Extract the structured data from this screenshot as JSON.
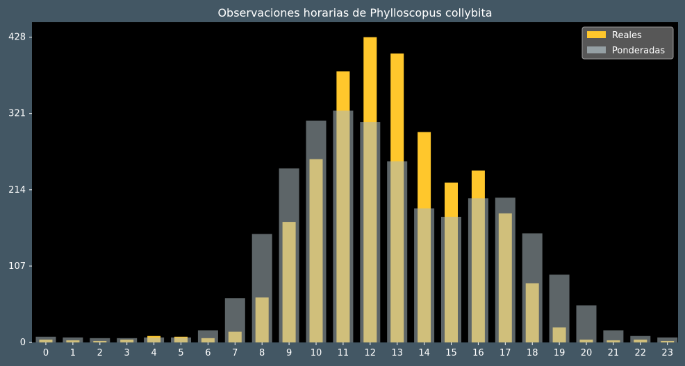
{
  "chart_data": {
    "type": "bar",
    "title": "Observaciones horarias de Phylloscopus collybita",
    "xlabel": "",
    "ylabel": "",
    "categories": [
      "0",
      "1",
      "2",
      "3",
      "4",
      "5",
      "6",
      "7",
      "8",
      "9",
      "10",
      "11",
      "12",
      "13",
      "14",
      "15",
      "16",
      "17",
      "18",
      "19",
      "20",
      "21",
      "22",
      "23"
    ],
    "series": [
      {
        "name": "Reales",
        "color": "#ffc72c",
        "values": [
          4,
          3,
          2,
          4,
          9,
          8,
          6,
          15,
          63,
          169,
          257,
          380,
          428,
          405,
          295,
          224,
          241,
          181,
          83,
          21,
          4,
          3,
          4,
          2
        ]
      },
      {
        "name": "Ponderadas",
        "color": "#a9b8be",
        "values": [
          8,
          7,
          6,
          6,
          7,
          7,
          17,
          62,
          152,
          244,
          311,
          325,
          309,
          254,
          188,
          176,
          202,
          203,
          153,
          95,
          52,
          17,
          9,
          7
        ]
      }
    ],
    "yticks": [
      "0",
      "107",
      "214",
      "321",
      "428"
    ],
    "ylim": [
      0,
      449
    ],
    "grid": false,
    "legend": "top-right"
  }
}
